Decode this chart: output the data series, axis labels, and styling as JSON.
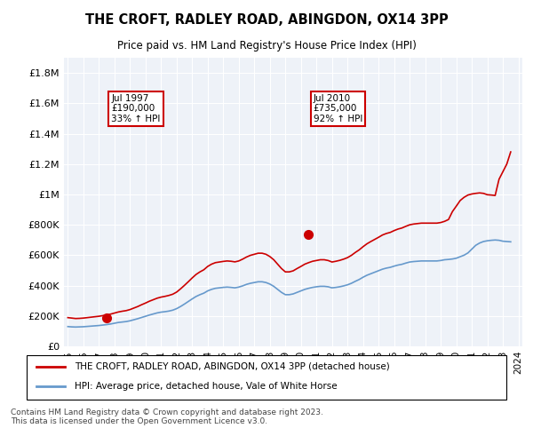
{
  "title": "THE CROFT, RADLEY ROAD, ABINGDON, OX14 3PP",
  "subtitle": "Price paid vs. HM Land Registry's House Price Index (HPI)",
  "footer": "Contains HM Land Registry data © Crown copyright and database right 2023.\nThis data is licensed under the Open Government Licence v3.0.",
  "legend_property": "THE CROFT, RADLEY ROAD, ABINGDON, OX14 3PP (detached house)",
  "legend_hpi": "HPI: Average price, detached house, Vale of White Horse",
  "property_color": "#cc0000",
  "hpi_color": "#6699cc",
  "annotation_box_color": "#cc0000",
  "background_color": "#eef2f8",
  "sales": [
    {
      "date_label": "Jul 1997",
      "price": 190000,
      "pct": "33%",
      "year": 1997.5
    },
    {
      "date_label": "Jul 2010",
      "price": 735000,
      "pct": "92%",
      "year": 2010.5
    }
  ],
  "hpi_data": {
    "years": [
      1995.0,
      1995.25,
      1995.5,
      1995.75,
      1996.0,
      1996.25,
      1996.5,
      1996.75,
      1997.0,
      1997.25,
      1997.5,
      1997.75,
      1998.0,
      1998.25,
      1998.5,
      1998.75,
      1999.0,
      1999.25,
      1999.5,
      1999.75,
      2000.0,
      2000.25,
      2000.5,
      2000.75,
      2001.0,
      2001.25,
      2001.5,
      2001.75,
      2002.0,
      2002.25,
      2002.5,
      2002.75,
      2003.0,
      2003.25,
      2003.5,
      2003.75,
      2004.0,
      2004.25,
      2004.5,
      2004.75,
      2005.0,
      2005.25,
      2005.5,
      2005.75,
      2006.0,
      2006.25,
      2006.5,
      2006.75,
      2007.0,
      2007.25,
      2007.5,
      2007.75,
      2008.0,
      2008.25,
      2008.5,
      2008.75,
      2009.0,
      2009.25,
      2009.5,
      2009.75,
      2010.0,
      2010.25,
      2010.5,
      2010.75,
      2011.0,
      2011.25,
      2011.5,
      2011.75,
      2012.0,
      2012.25,
      2012.5,
      2012.75,
      2013.0,
      2013.25,
      2013.5,
      2013.75,
      2014.0,
      2014.25,
      2014.5,
      2014.75,
      2015.0,
      2015.25,
      2015.5,
      2015.75,
      2016.0,
      2016.25,
      2016.5,
      2016.75,
      2017.0,
      2017.25,
      2017.5,
      2017.75,
      2018.0,
      2018.25,
      2018.5,
      2018.75,
      2019.0,
      2019.25,
      2019.5,
      2019.75,
      2020.0,
      2020.25,
      2020.5,
      2020.75,
      2021.0,
      2021.25,
      2021.5,
      2021.75,
      2022.0,
      2022.25,
      2022.5,
      2022.75,
      2023.0,
      2023.25,
      2023.5
    ],
    "values": [
      130000,
      128000,
      127000,
      128000,
      129000,
      131000,
      133000,
      135000,
      137000,
      140000,
      143000,
      147000,
      152000,
      157000,
      160000,
      163000,
      168000,
      175000,
      182000,
      190000,
      198000,
      206000,
      213000,
      220000,
      225000,
      228000,
      232000,
      238000,
      248000,
      262000,
      278000,
      295000,
      312000,
      328000,
      340000,
      350000,
      365000,
      375000,
      382000,
      385000,
      388000,
      390000,
      388000,
      385000,
      390000,
      398000,
      408000,
      415000,
      420000,
      425000,
      425000,
      420000,
      410000,
      395000,
      375000,
      355000,
      340000,
      340000,
      345000,
      355000,
      365000,
      375000,
      382000,
      388000,
      392000,
      395000,
      395000,
      392000,
      385000,
      388000,
      392000,
      398000,
      405000,
      415000,
      428000,
      440000,
      455000,
      468000,
      478000,
      488000,
      498000,
      508000,
      515000,
      520000,
      528000,
      535000,
      540000,
      548000,
      555000,
      558000,
      560000,
      562000,
      562000,
      562000,
      562000,
      562000,
      565000,
      570000,
      572000,
      575000,
      580000,
      590000,
      600000,
      615000,
      640000,
      665000,
      680000,
      690000,
      695000,
      698000,
      700000,
      698000,
      692000,
      690000,
      688000
    ]
  },
  "property_hpi_data": {
    "years": [
      1995.0,
      1995.25,
      1995.5,
      1995.75,
      1996.0,
      1996.25,
      1996.5,
      1996.75,
      1997.0,
      1997.25,
      1997.5,
      1997.75,
      1998.0,
      1998.25,
      1998.5,
      1998.75,
      1999.0,
      1999.25,
      1999.5,
      1999.75,
      2000.0,
      2000.25,
      2000.5,
      2000.75,
      2001.0,
      2001.25,
      2001.5,
      2001.75,
      2002.0,
      2002.25,
      2002.5,
      2002.75,
      2003.0,
      2003.25,
      2003.5,
      2003.75,
      2004.0,
      2004.25,
      2004.5,
      2004.75,
      2005.0,
      2005.25,
      2005.5,
      2005.75,
      2006.0,
      2006.25,
      2006.5,
      2006.75,
      2007.0,
      2007.25,
      2007.5,
      2007.75,
      2008.0,
      2008.25,
      2008.5,
      2008.75,
      2009.0,
      2009.25,
      2009.5,
      2009.75,
      2010.0,
      2010.25,
      2010.5,
      2010.75,
      2011.0,
      2011.25,
      2011.5,
      2011.75,
      2012.0,
      2012.25,
      2012.5,
      2012.75,
      2013.0,
      2013.25,
      2013.5,
      2013.75,
      2014.0,
      2014.25,
      2014.5,
      2014.75,
      2015.0,
      2015.25,
      2015.5,
      2015.75,
      2016.0,
      2016.25,
      2016.5,
      2016.75,
      2017.0,
      2017.25,
      2017.5,
      2017.75,
      2018.0,
      2018.25,
      2018.5,
      2018.75,
      2019.0,
      2019.25,
      2019.5,
      2019.75,
      2020.0,
      2020.25,
      2020.5,
      2020.75,
      2021.0,
      2021.25,
      2021.5,
      2021.75,
      2022.0,
      2022.25,
      2022.5,
      2022.75,
      2023.0,
      2023.25,
      2023.5
    ],
    "values": [
      189000,
      186000,
      183000,
      184000,
      186000,
      189000,
      192000,
      195000,
      198000,
      202000,
      206000,
      212000,
      219000,
      226000,
      231000,
      235000,
      242000,
      252000,
      262000,
      274000,
      285000,
      297000,
      307000,
      317000,
      324000,
      329000,
      335000,
      343000,
      357000,
      378000,
      401000,
      425000,
      450000,
      473000,
      490000,
      504000,
      526000,
      541000,
      551000,
      555000,
      559000,
      562000,
      560000,
      556000,
      562000,
      574000,
      588000,
      599000,
      606000,
      613000,
      613000,
      606000,
      591000,
      570000,
      541000,
      512000,
      490000,
      490000,
      497000,
      512000,
      526000,
      541000,
      551000,
      560000,
      565000,
      570000,
      570000,
      565000,
      555000,
      560000,
      566000,
      574000,
      584000,
      599000,
      618000,
      635000,
      656000,
      675000,
      690000,
      704000,
      718000,
      733000,
      743000,
      750000,
      762000,
      772000,
      779000,
      790000,
      800000,
      805000,
      808000,
      811000,
      811000,
      811000,
      811000,
      811000,
      815000,
      823000,
      835000,
      887000,
      923000,
      960000,
      981000,
      996000,
      1003000,
      1007000,
      1010000,
      1007000,
      998000,
      996000,
      993000,
      1100000,
      1150000,
      1200000,
      1280000
    ]
  },
  "ylim": [
    0,
    1900000
  ],
  "xlim": [
    1994.75,
    2024.25
  ],
  "yticks": [
    0,
    200000,
    400000,
    600000,
    800000,
    1000000,
    1200000,
    1400000,
    1600000,
    1800000
  ],
  "ytick_labels": [
    "£0",
    "£200K",
    "£400K",
    "£600K",
    "£800K",
    "£1M",
    "£1.2M",
    "£1.4M",
    "£1.6M",
    "£1.8M"
  ],
  "xtick_years": [
    1995,
    1996,
    1997,
    1998,
    1999,
    2000,
    2001,
    2002,
    2003,
    2004,
    2005,
    2006,
    2007,
    2008,
    2009,
    2010,
    2011,
    2012,
    2013,
    2014,
    2015,
    2016,
    2017,
    2018,
    2019,
    2020,
    2021,
    2022,
    2023,
    2024
  ]
}
